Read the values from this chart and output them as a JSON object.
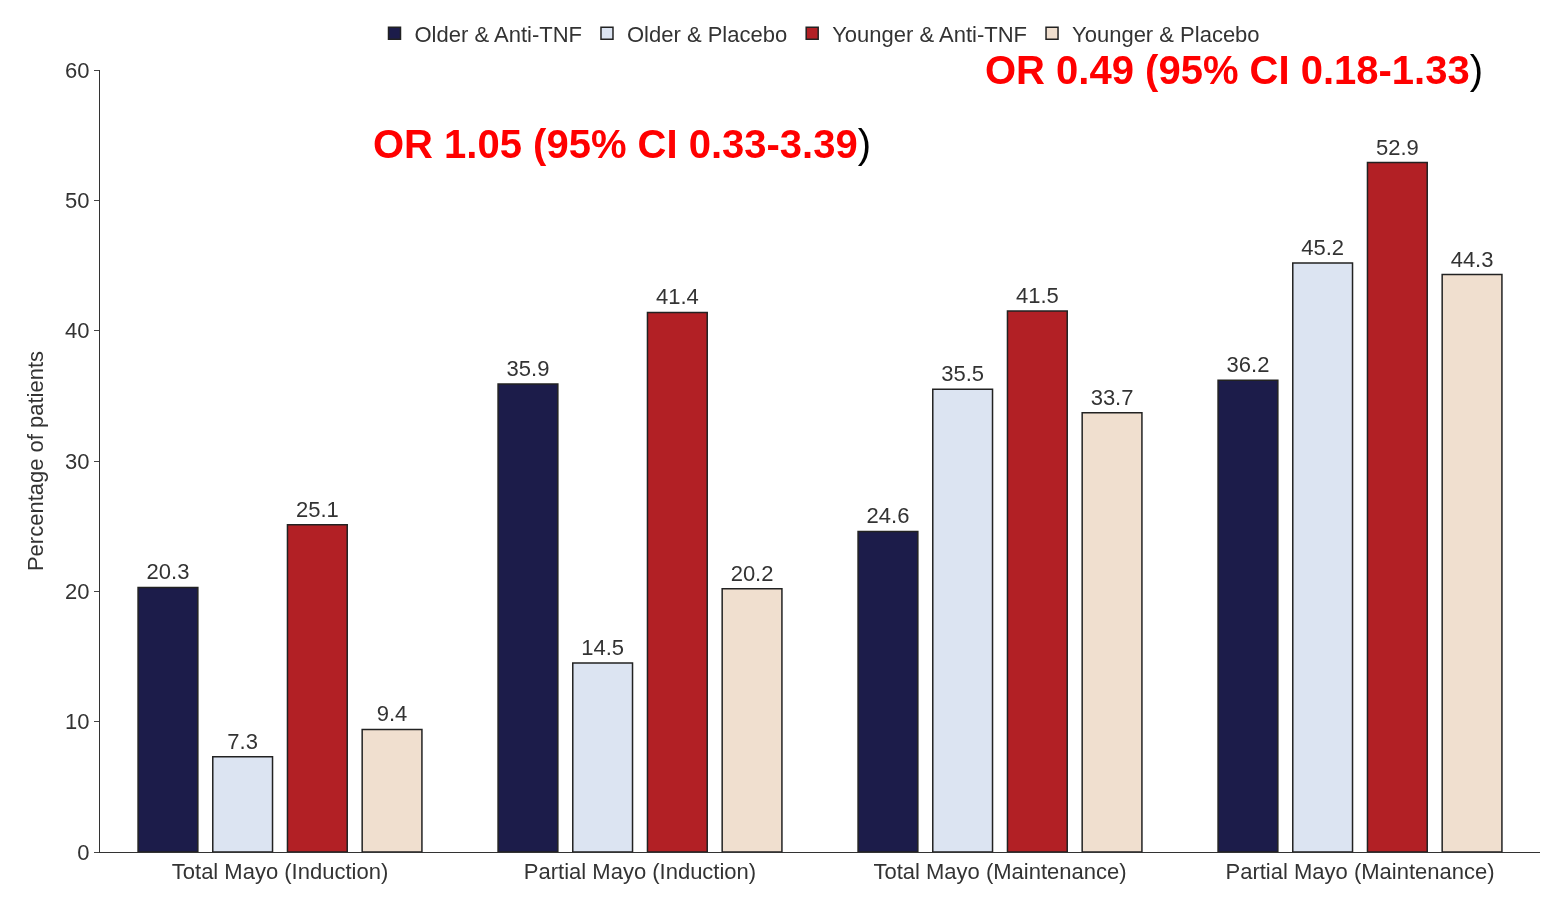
{
  "chart_data": {
    "type": "bar",
    "ylabel": "Percentage of patients",
    "categories": [
      "Total Mayo (Induction)",
      "Partial Mayo (Induction)",
      "Total Mayo (Maintenance)",
      "Partial Mayo (Maintenance)"
    ],
    "series": [
      {
        "name": "Older & Anti-TNF",
        "color": "#1c1c4a",
        "values": [
          20.3,
          35.9,
          24.6,
          36.2
        ]
      },
      {
        "name": "Older & Placebo",
        "color": "#dce4f2",
        "values": [
          7.3,
          14.5,
          35.5,
          45.2
        ]
      },
      {
        "name": "Younger & Anti-TNF",
        "color": "#b22025",
        "values": [
          25.1,
          41.4,
          41.5,
          52.9
        ]
      },
      {
        "name": "Younger & Placebo",
        "color": "#f0dfcf",
        "values": [
          9.4,
          20.2,
          33.7,
          44.3
        ]
      }
    ],
    "ylim": [
      0,
      60
    ],
    "yticks": [
      0,
      10,
      20,
      30,
      40,
      50,
      60
    ],
    "data_labels": true,
    "legend": "top",
    "annotations": [
      "OR 1.05 (95% CI 0.33-3.39)",
      "OR 0.49 (95% CI 0.18-1.33)"
    ]
  }
}
